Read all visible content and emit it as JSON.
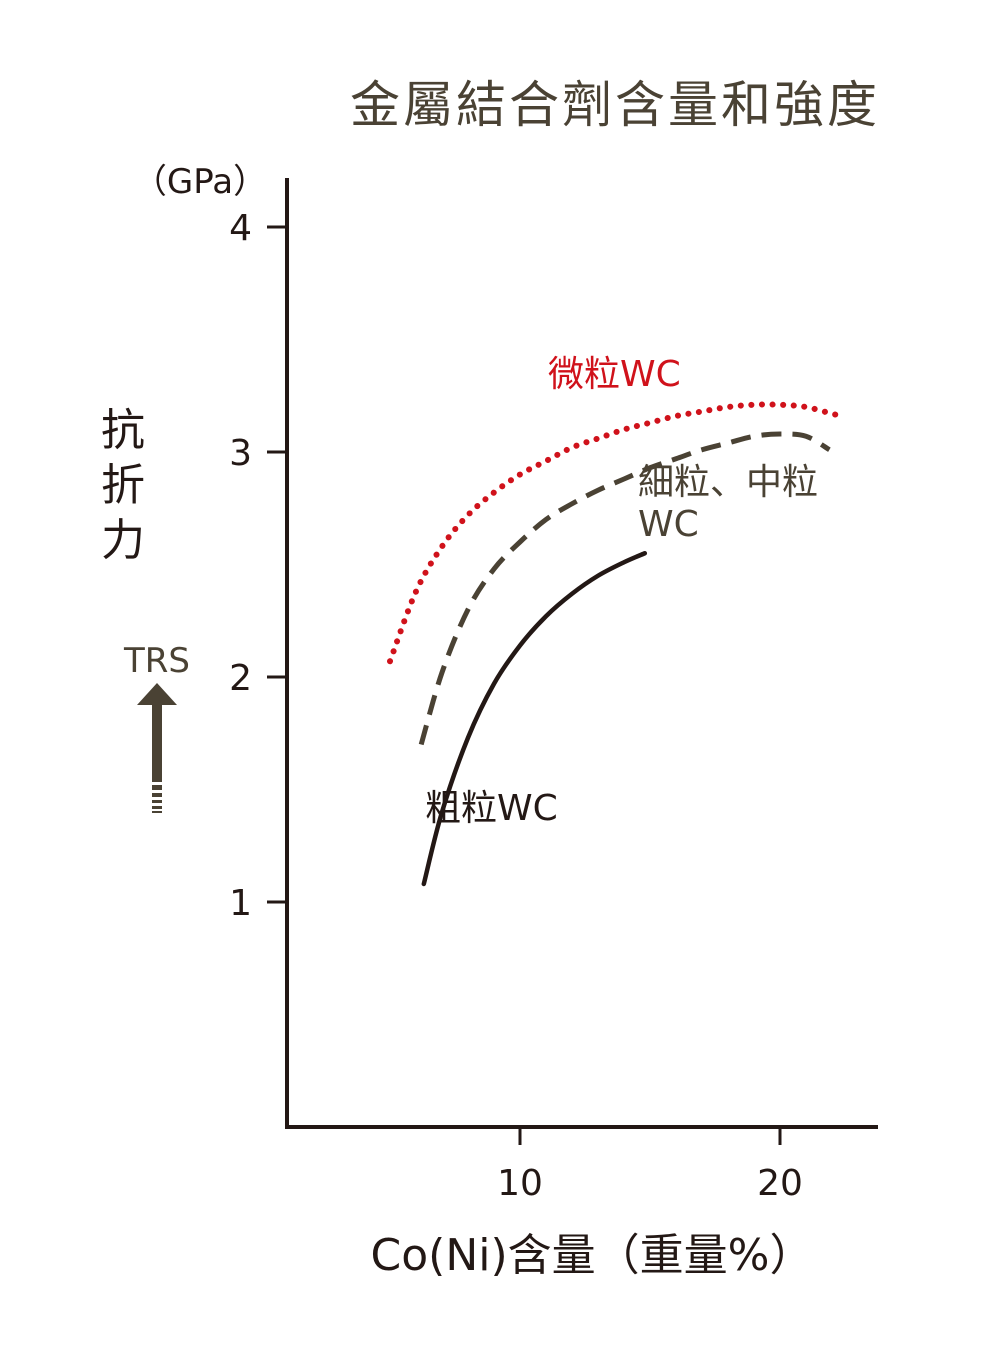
{
  "chart_data": {
    "type": "line",
    "title": "金屬結合劑含量和強度",
    "xlabel": "Co(Ni)含量（重量%）",
    "ylabel": "抗折力",
    "ylabel_chars": [
      "抗",
      "折",
      "力"
    ],
    "yunit": "（GPa）",
    "arrow_label": "TRS",
    "xlim": [
      3.3,
      25.9
    ],
    "ylim": [
      0,
      4.2
    ],
    "xticks": [
      10,
      20
    ],
    "xtick_labels": [
      "10",
      "20"
    ],
    "yticks": [
      1,
      2,
      3,
      4
    ],
    "ytick_labels": [
      "1",
      "2",
      "3",
      "4"
    ],
    "grid": false,
    "legend": "none",
    "series": [
      {
        "name": "微粒WC",
        "label_lines": [
          "微粒WC"
        ],
        "style": "dotted",
        "color": "#d0121b",
        "x": [
          5.0,
          6.0,
          7.0,
          8.0,
          9.0,
          10.0,
          11.0,
          12.0,
          13.0,
          14.0,
          15.0,
          16.0,
          17.0,
          18.0,
          19.0,
          20.0,
          21.0,
          22.0,
          22.4
        ],
        "y": [
          2.07,
          2.38,
          2.58,
          2.72,
          2.82,
          2.9,
          2.96,
          3.02,
          3.06,
          3.1,
          3.13,
          3.16,
          3.18,
          3.2,
          3.21,
          3.21,
          3.2,
          3.17,
          3.16
        ]
      },
      {
        "name": "細粒、中粒WC",
        "label_lines": [
          "細粒、中粒",
          "WC"
        ],
        "style": "dashed",
        "color": "#4a4234",
        "x": [
          6.2,
          7.0,
          8.0,
          9.0,
          10.0,
          11.0,
          12.0,
          13.0,
          14.0,
          15.0,
          16.0,
          17.0,
          18.0,
          19.0,
          20.0,
          21.0,
          21.9
        ],
        "y": [
          1.7,
          2.02,
          2.3,
          2.48,
          2.6,
          2.7,
          2.77,
          2.83,
          2.88,
          2.93,
          2.97,
          3.01,
          3.04,
          3.07,
          3.08,
          3.07,
          3.01
        ]
      },
      {
        "name": "粗粒WC",
        "label_lines": [
          "粗粒WC"
        ],
        "style": "solid",
        "color": "#231815",
        "x": [
          6.3,
          7.0,
          8.0,
          9.0,
          10.0,
          11.0,
          12.0,
          13.0,
          14.0,
          14.8
        ],
        "y": [
          1.08,
          1.4,
          1.73,
          1.97,
          2.14,
          2.27,
          2.37,
          2.45,
          2.51,
          2.55
        ]
      }
    ]
  }
}
